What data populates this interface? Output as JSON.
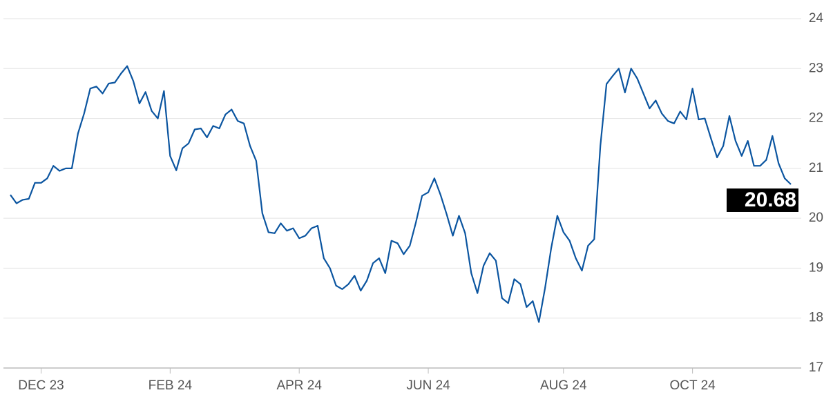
{
  "chart_data": {
    "type": "line",
    "categories": [
      null,
      null,
      null,
      null,
      null,
      "DEC 23",
      null,
      null,
      null,
      null,
      null,
      null,
      null,
      null,
      null,
      null,
      null,
      null,
      null,
      null,
      null,
      null,
      null,
      null,
      null,
      null,
      "FEB 24",
      null,
      null,
      null,
      null,
      null,
      null,
      null,
      null,
      null,
      null,
      null,
      null,
      null,
      null,
      null,
      null,
      null,
      null,
      null,
      null,
      "APR 24",
      null,
      null,
      null,
      null,
      null,
      null,
      null,
      null,
      null,
      null,
      null,
      null,
      null,
      null,
      null,
      null,
      null,
      null,
      null,
      null,
      "JUN 24",
      null,
      null,
      null,
      null,
      null,
      null,
      null,
      null,
      null,
      null,
      null,
      null,
      null,
      null,
      null,
      null,
      null,
      null,
      null,
      null,
      null,
      "AUG 24",
      null,
      null,
      null,
      null,
      null,
      null,
      null,
      null,
      null,
      null,
      null,
      null,
      null,
      null,
      null,
      null,
      null,
      null,
      null,
      null,
      "OCT 24",
      null,
      null,
      null,
      null,
      null,
      null,
      null,
      null,
      null,
      null,
      null,
      null,
      null,
      null,
      null,
      null
    ],
    "series": [
      {
        "color": "#0b55a0",
        "values": [
          20.47,
          20.3,
          20.37,
          20.39,
          20.71,
          20.71,
          20.8,
          21.05,
          20.95,
          21.0,
          21.0,
          21.7,
          22.1,
          22.6,
          22.64,
          22.5,
          22.7,
          22.72,
          22.9,
          23.05,
          22.75,
          22.3,
          22.53,
          22.15,
          22.0,
          22.55,
          21.25,
          20.96,
          21.4,
          21.5,
          21.78,
          21.8,
          21.62,
          21.85,
          21.8,
          22.08,
          22.18,
          21.95,
          21.9,
          21.45,
          21.15,
          20.1,
          19.72,
          19.7,
          19.9,
          19.75,
          19.8,
          19.6,
          19.65,
          19.8,
          19.85,
          19.2,
          19.0,
          18.65,
          18.58,
          18.68,
          18.85,
          18.55,
          18.75,
          19.1,
          19.2,
          18.9,
          19.55,
          19.5,
          19.28,
          19.45,
          19.92,
          20.45,
          20.52,
          20.8,
          20.47,
          20.08,
          19.65,
          20.05,
          19.7,
          18.9,
          18.5,
          19.05,
          19.3,
          19.15,
          18.4,
          18.3,
          18.78,
          18.68,
          18.22,
          18.34,
          17.92,
          18.6,
          19.4,
          20.05,
          19.72,
          19.55,
          19.2,
          18.95,
          19.45,
          19.58,
          21.45,
          22.69,
          22.85,
          23.0,
          22.52,
          23.0,
          22.8,
          22.5,
          22.2,
          22.36,
          22.1,
          21.95,
          21.9,
          22.14,
          21.98,
          22.6,
          21.98,
          22.0,
          21.6,
          21.22,
          21.45,
          22.05,
          21.55,
          21.25,
          21.55,
          21.05,
          21.05,
          21.17,
          21.65,
          21.1,
          20.8,
          20.68
        ]
      }
    ],
    "ylim": [
      17,
      24
    ],
    "yticks": [
      17,
      18,
      19,
      20,
      21,
      22,
      23,
      24
    ],
    "grid": true
  }
}
